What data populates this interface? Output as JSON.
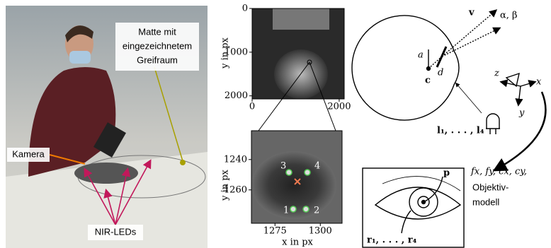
{
  "photo": {
    "mat_label": [
      "Matte mit",
      "eingezeichnetem",
      "Greifraum"
    ],
    "camera_label": "Kamera",
    "led_label": "NIR-LEDs"
  },
  "image_plot": {
    "xlim": [
      0,
      2115
    ],
    "ylim": [
      0,
      2070
    ],
    "y_inverted": true,
    "xticks": [
      0,
      2000
    ],
    "yticks": [
      0,
      1000,
      2000
    ],
    "ylabel": "y in px"
  },
  "zoom_plot": {
    "xlim": [
      1262,
      1312
    ],
    "ylim": [
      1221,
      1282
    ],
    "y_inverted": true,
    "xticks": [
      1275,
      1300
    ],
    "yticks": [
      1240,
      1260
    ],
    "xlabel": "x in px",
    "ylabel": "y in px",
    "led_numbers": [
      "1",
      "2",
      "3",
      "4"
    ]
  },
  "diagram": {
    "v": "v",
    "angles": "α, β",
    "a": "a",
    "d": "d",
    "c": "c",
    "z": "z",
    "x": "x",
    "y": "y",
    "leds": "l₁, . . . , l₄",
    "intrinsics": "fx, fy, cx, cy,",
    "model": [
      "Objektiv-",
      "modell"
    ],
    "p": "p",
    "reflections": "r₁, . . . , r₄"
  }
}
